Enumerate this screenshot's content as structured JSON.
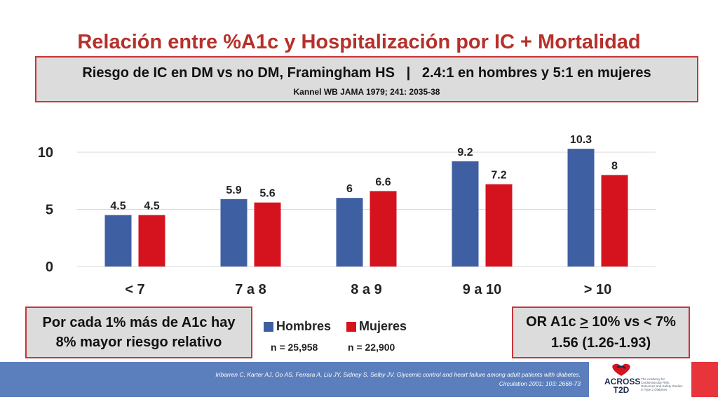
{
  "title": "Relación entre %A1c y Hospitalización por IC + Mortalidad",
  "header": {
    "main": "Riesgo de IC en DM vs no DM, Framingham HS   |   2.4:1 en hombres y 5:1 en mujeres",
    "citation": "Kannel WB JAMA 1979; 241: 2035-38"
  },
  "note_box": {
    "line1": "Por cada 1% más de A1c hay",
    "line2": "8% mayor riesgo relativo"
  },
  "or_box": {
    "prefix": "OR A1c ",
    "underlined": ">",
    "suffix": " 10% vs < 7%",
    "line2": "1.56 (1.26-1.93)"
  },
  "legend": [
    {
      "name": "Hombres",
      "n": "n = 25,958",
      "color": "#3f5fa3"
    },
    {
      "name": "Mujeres",
      "n": "n = 22,900",
      "color": "#d5131f"
    }
  ],
  "chart_data": {
    "type": "bar",
    "categories": [
      "< 7",
      "7 a 8",
      "8 a 9",
      "9 a 10",
      "> 10"
    ],
    "series": [
      {
        "name": "Hombres",
        "color": "#3f5fa3",
        "values": [
          4.5,
          5.9,
          6,
          9.2,
          10.3
        ],
        "labels": [
          "4.5",
          "5.9",
          "6",
          "9.2",
          "10.3"
        ]
      },
      {
        "name": "Mujeres",
        "color": "#d5131f",
        "values": [
          4.5,
          5.6,
          6.6,
          7.2,
          8
        ],
        "labels": [
          "4.5",
          "5.6",
          "6.6",
          "7.2",
          "8"
        ]
      }
    ],
    "yticks": [
      0,
      5,
      10
    ],
    "ytick_labels": [
      "0",
      "5",
      "10"
    ],
    "ylim": [
      0,
      10.5
    ],
    "grid": true,
    "legend_position": "bottom"
  },
  "footer": {
    "reference_line1": "Iribarren C, Karter AJ, Go AS, Ferrara A, Liu JY, Sidney S, Selby JV. Glycemic control and heart failure among adult patients with diabetes.",
    "reference_line2": "Circulation 2001; 103: 2668-73",
    "logo_line1": "ACROSS",
    "logo_line2": "T2D",
    "logo_tagline": "The Academy for Cardiovascular Risk, Outcomes and Safety Studies in Type 2 Diabetes"
  }
}
